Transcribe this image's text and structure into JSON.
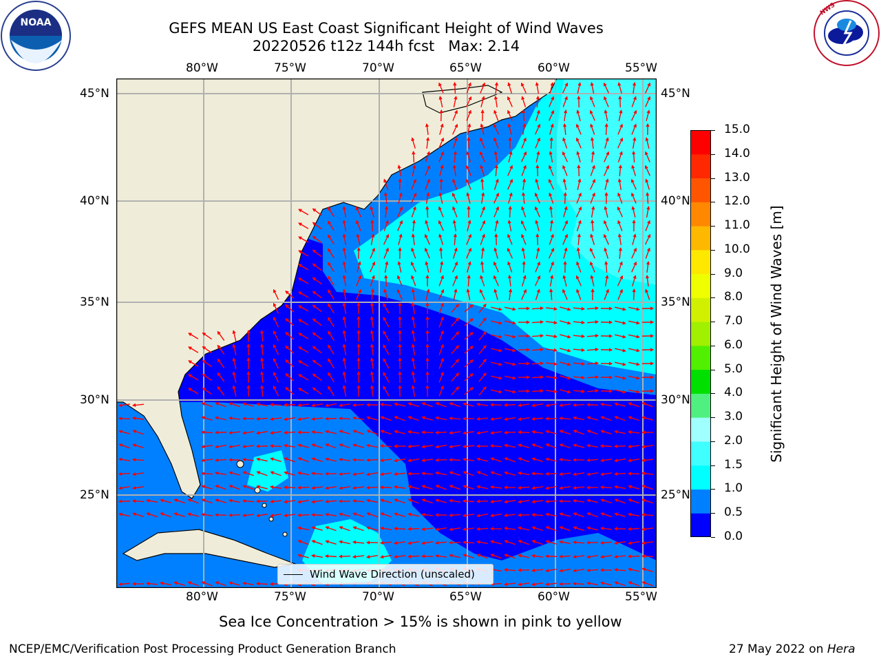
{
  "header": {
    "title_line1": "GEFS MEAN US East Coast Significant Height of Wind Waves",
    "title_line2": "20220526 t12z 144h fcst   Max: 2.14"
  },
  "logos": {
    "noaa_text": "NOAA",
    "noaa_ring_text": "NATIONAL OCEANIC AND ATMOSPHERIC ADMINISTRATION · U.S. DEPARTMENT OF COMMERCE",
    "nws_ring_text": "NATIONAL WEATHER SERVICE"
  },
  "map": {
    "lon_labels": [
      "80°W",
      "75°W",
      "70°W",
      "65°W",
      "60°W",
      "55°W"
    ],
    "lat_labels": [
      "45°N",
      "40°N",
      "35°N",
      "30°N",
      "25°N"
    ],
    "legend_label": "Wind Wave Direction (unscaled)",
    "colors": {
      "land": "#efedd9",
      "level_0_0.5": "#0000ff",
      "level_0.5_1.0": "#0080ff",
      "level_1.0_1.5": "#00ffff",
      "level_1.5_2.0": "#40ffff",
      "arrow": "#ff0000",
      "grid": "#b0b0b0"
    }
  },
  "colorbar": {
    "label": "Significant Height of Wind Waves [m]",
    "ticks": [
      "15.0",
      "14.0",
      "13.0",
      "12.0",
      "11.0",
      "10.0",
      "9.0",
      "8.0",
      "7.0",
      "6.0",
      "5.0",
      "4.0",
      "3.0",
      "2.0",
      "1.5",
      "1.0",
      "0.5",
      "0.0"
    ],
    "colors_bottom_to_top": [
      "#0000ff",
      "#0080ff",
      "#00ffff",
      "#40ffff",
      "#a0ffff",
      "#50f080",
      "#00e000",
      "#50f000",
      "#a0f000",
      "#d0f000",
      "#f0ff00",
      "#ffe800",
      "#ffb800",
      "#ff8800",
      "#ff5500",
      "#ff2800",
      "#ff0000"
    ]
  },
  "footer": {
    "sea_ice_note": "Sea Ice Concentration > 15% is shown in pink to yellow",
    "branch": "NCEP/EMC/Verification Post Processing Product Generation Branch",
    "date": "27 May 2022 on ",
    "machine": "Hera"
  }
}
